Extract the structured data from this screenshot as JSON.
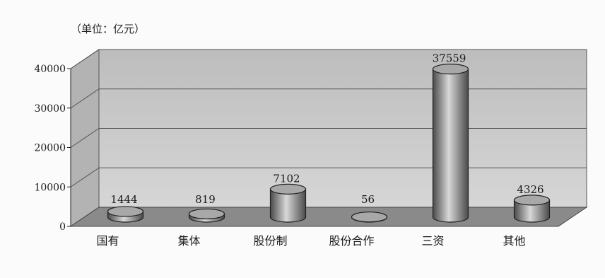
{
  "chart_data": {
    "type": "bar",
    "unit_label": "（单位：亿元）",
    "categories": [
      "国有",
      "集体",
      "股份制",
      "股份合作",
      "三资",
      "其他"
    ],
    "values": [
      1444,
      819,
      7102,
      56,
      37559,
      4326
    ],
    "value_labels": [
      "1444",
      "819",
      "7102",
      "56",
      "37559",
      "4326"
    ],
    "y_ticks": [
      "0",
      "10000",
      "20000",
      "30000",
      "40000"
    ],
    "ylim": [
      0,
      40000
    ],
    "grid": true,
    "style": "3d-cylinder",
    "colors": {
      "wall": "#c9c9c9",
      "floor": "#8a8a8a",
      "bar": "#9a9a9a",
      "bar_dark": "#4a4a4a",
      "bar_light": "#d8d8d8"
    }
  }
}
